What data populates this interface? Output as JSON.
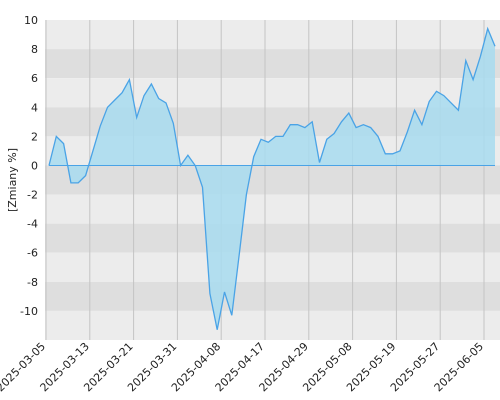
{
  "chart_data": {
    "type": "area",
    "ylabel": "[Zmiany %]",
    "ylim": [
      -12,
      10
    ],
    "y_ticks": [
      10,
      8,
      6,
      4,
      2,
      0,
      -2,
      -4,
      -6,
      -8,
      -10
    ],
    "x_tick_labels": [
      "2025-03-05",
      "2025-03-13",
      "2025-03-21",
      "2025-03-31",
      "2025-04-08",
      "2025-04-17",
      "2025-04-29",
      "2025-05-08",
      "2025-05-19",
      "2025-05-27",
      "2025-06-05"
    ],
    "grid": "horizontal alternating bands, vertical lines",
    "colors": {
      "line": "#4aa3e6",
      "fill": "#a8dcf0",
      "band_dark": "#dedede",
      "band_light": "#ececec",
      "vgrid": "#c4c4c4"
    },
    "series": [
      {
        "values": [
          0.0,
          2.0,
          1.5,
          -1.2,
          -1.2,
          -0.7,
          1.0,
          2.7,
          4.0,
          4.5,
          5.0,
          5.9,
          3.3,
          4.8,
          5.6,
          4.6,
          4.3,
          2.9,
          0.0,
          0.7,
          0.0,
          -1.5,
          -8.8,
          -11.3,
          -8.7,
          -10.3,
          -6.2,
          -2.0,
          0.6,
          1.8,
          1.6,
          2.0,
          2.0,
          2.8,
          2.8,
          2.6,
          3.0,
          0.2,
          1.8,
          2.2,
          3.0,
          3.6,
          2.6,
          2.8,
          2.6,
          2.0,
          0.8,
          0.8,
          1.0,
          2.3,
          3.8,
          2.8,
          4.4,
          5.1,
          4.8,
          4.3,
          3.8,
          7.2,
          5.9,
          7.5,
          9.4,
          8.2
        ]
      }
    ]
  }
}
